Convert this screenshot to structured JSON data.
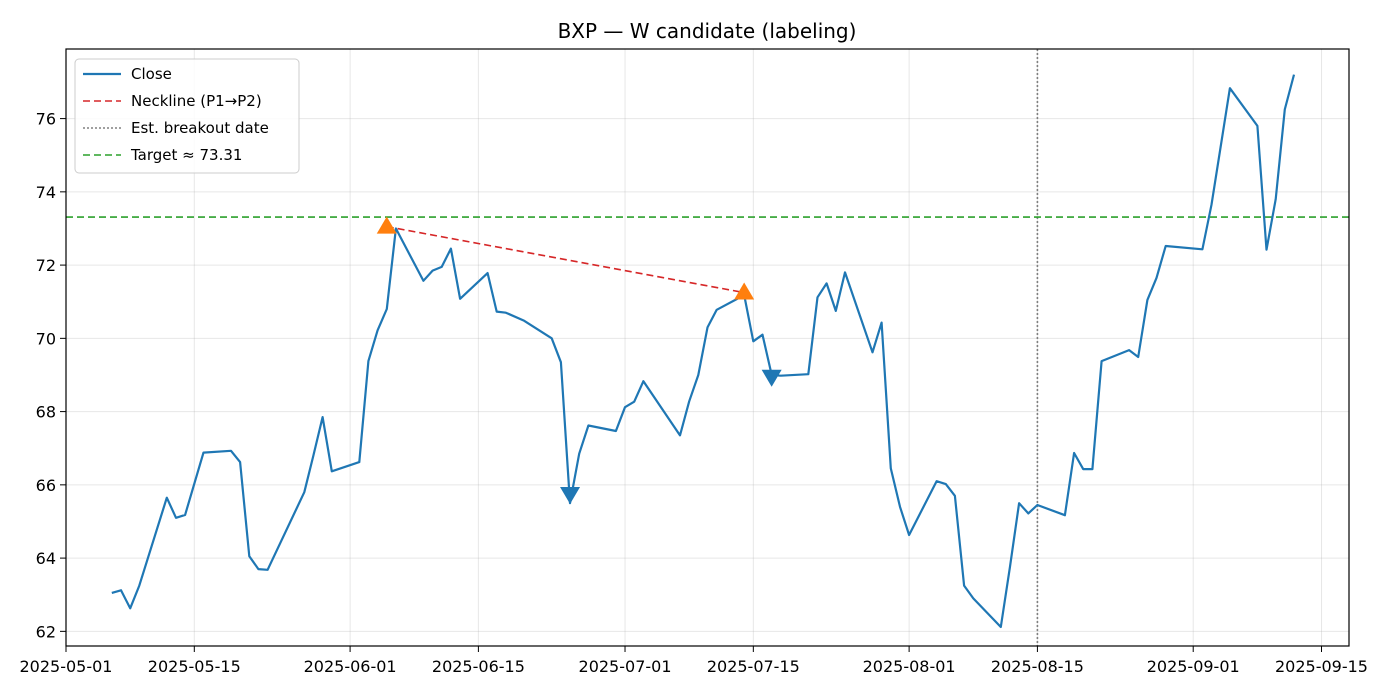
{
  "chart_data": {
    "type": "line",
    "title": "BXP — W candidate (labeling)",
    "xlabel": "",
    "ylabel": "",
    "x_type": "date",
    "xlim": [
      "2025-05-01",
      "2025-09-18"
    ],
    "ylim": [
      61.6,
      77.9
    ],
    "x_ticks": [
      "2025-05-01",
      "2025-05-15",
      "2025-06-01",
      "2025-06-15",
      "2025-07-01",
      "2025-07-15",
      "2025-08-01",
      "2025-08-15",
      "2025-09-01",
      "2025-09-15"
    ],
    "y_ticks": [
      62,
      64,
      66,
      68,
      70,
      72,
      74,
      76
    ],
    "grid": true,
    "legend_position": "upper-left",
    "series": [
      {
        "name": "Close",
        "color": "#1f77b4",
        "style": "solid",
        "x": [
          "2025-05-06",
          "2025-05-07",
          "2025-05-08",
          "2025-05-09",
          "2025-05-12",
          "2025-05-13",
          "2025-05-14",
          "2025-05-16",
          "2025-05-19",
          "2025-05-20",
          "2025-05-21",
          "2025-05-22",
          "2025-05-23",
          "2025-05-27",
          "2025-05-28",
          "2025-05-29",
          "2025-05-30",
          "2025-06-02",
          "2025-06-03",
          "2025-06-04",
          "2025-06-05",
          "2025-06-06",
          "2025-06-09",
          "2025-06-10",
          "2025-06-11",
          "2025-06-12",
          "2025-06-13",
          "2025-06-16",
          "2025-06-17",
          "2025-06-18",
          "2025-06-20",
          "2025-06-23",
          "2025-06-24",
          "2025-06-25",
          "2025-06-26",
          "2025-06-27",
          "2025-06-30",
          "2025-07-01",
          "2025-07-02",
          "2025-07-03",
          "2025-07-07",
          "2025-07-08",
          "2025-07-09",
          "2025-07-10",
          "2025-07-11",
          "2025-07-14",
          "2025-07-15",
          "2025-07-16",
          "2025-07-17",
          "2025-07-18",
          "2025-07-21",
          "2025-07-22",
          "2025-07-23",
          "2025-07-24",
          "2025-07-25",
          "2025-07-28",
          "2025-07-29",
          "2025-07-30",
          "2025-07-31",
          "2025-08-01",
          "2025-08-04",
          "2025-08-05",
          "2025-08-06",
          "2025-08-07",
          "2025-08-08",
          "2025-08-11",
          "2025-08-12",
          "2025-08-13",
          "2025-08-14",
          "2025-08-15",
          "2025-08-18",
          "2025-08-19",
          "2025-08-20",
          "2025-08-21",
          "2025-08-22",
          "2025-08-25",
          "2025-08-26",
          "2025-08-27",
          "2025-08-28",
          "2025-08-29",
          "2025-09-02",
          "2025-09-03",
          "2025-09-05",
          "2025-09-08",
          "2025-09-09",
          "2025-09-10",
          "2025-09-11",
          "2025-09-12"
        ],
        "y": [
          63.05,
          63.12,
          62.63,
          63.25,
          65.65,
          65.1,
          65.18,
          66.88,
          66.93,
          66.62,
          64.05,
          63.7,
          63.68,
          65.8,
          66.8,
          67.85,
          66.37,
          66.62,
          69.38,
          70.22,
          70.8,
          73.0,
          71.57,
          71.85,
          71.95,
          72.45,
          71.08,
          71.78,
          70.73,
          70.7,
          70.48,
          70.0,
          69.35,
          65.5,
          66.85,
          67.62,
          67.47,
          68.12,
          68.27,
          68.83,
          67.35,
          68.28,
          69.0,
          70.3,
          70.78,
          71.18,
          69.92,
          70.1,
          69.0,
          68.98,
          69.02,
          71.12,
          71.5,
          70.75,
          71.8,
          69.62,
          70.43,
          66.45,
          65.4,
          64.63,
          66.1,
          66.02,
          65.7,
          63.25,
          62.9,
          62.12,
          63.75,
          65.5,
          65.22,
          65.45,
          65.17,
          66.87,
          66.43,
          66.43,
          69.38,
          69.68,
          69.49,
          71.05,
          71.65,
          72.52,
          72.43,
          73.65,
          76.83,
          75.8,
          72.42,
          73.8,
          76.25,
          77.2
        ]
      },
      {
        "name": "Neckline (P1→P2)",
        "color": "#d62728",
        "style": "dashed",
        "x": [
          "2025-06-05",
          "2025-07-14"
        ],
        "y": [
          73.05,
          71.25
        ]
      }
    ],
    "reference_lines": [
      {
        "name": "Est. breakout date",
        "orientation": "vertical",
        "x": "2025-08-15",
        "color": "#808080",
        "style": "dotted"
      },
      {
        "name": "Target ≈ 73.31",
        "orientation": "horizontal",
        "y": 73.31,
        "color": "#2ca02c",
        "style": "dashed"
      }
    ],
    "markers": [
      {
        "kind": "peak",
        "shape": "triangle-up",
        "color": "#ff7f0e",
        "x": "2025-06-05",
        "y": 73.05
      },
      {
        "kind": "peak",
        "shape": "triangle-up",
        "color": "#ff7f0e",
        "x": "2025-07-14",
        "y": 71.25
      },
      {
        "kind": "trough",
        "shape": "triangle-down",
        "color": "#1f77b4",
        "x": "2025-06-25",
        "y": 65.75
      },
      {
        "kind": "trough",
        "shape": "triangle-down",
        "color": "#1f77b4",
        "x": "2025-07-17",
        "y": 68.95
      }
    ],
    "legend": [
      {
        "label": "Close",
        "color": "#1f77b4",
        "style": "solid"
      },
      {
        "label": "Neckline (P1→P2)",
        "color": "#d62728",
        "style": "dashed"
      },
      {
        "label": "Est. breakout date",
        "color": "#808080",
        "style": "dotted"
      },
      {
        "label": "Target ≈ 73.31",
        "color": "#2ca02c",
        "style": "dashed"
      }
    ]
  }
}
